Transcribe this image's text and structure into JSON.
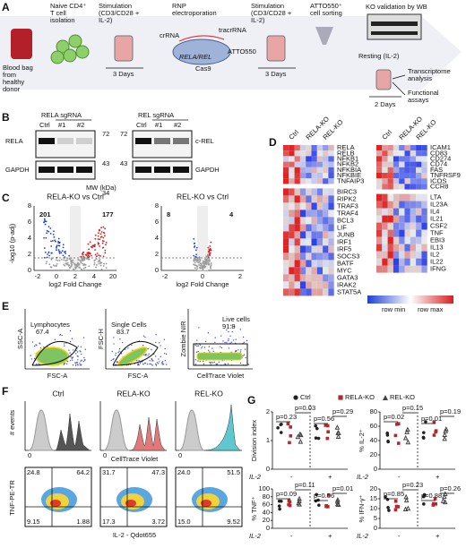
{
  "panel_a": {
    "label": "A",
    "blood_bag": [
      "Blood bag",
      "from",
      "healthy",
      "donor"
    ],
    "naive": [
      "Naive CD4⁺",
      "T cell",
      "isolation"
    ],
    "stim1": [
      "Stimulation",
      "(CD3/CD28 +",
      "IL-2)"
    ],
    "rnp": [
      "RNP",
      "electroporation"
    ],
    "stim2": [
      "Stimulation",
      "(CD3/CD28 +",
      "IL-2)"
    ],
    "sort": [
      "ATTO550⁺",
      "cell sorting"
    ],
    "wb": "KO validation by WB",
    "resting": "Resting (IL-2)",
    "days1": "3 Days",
    "days2": "3 Days",
    "days3": "2 Days",
    "transcriptome": [
      "Transcriptome",
      "analysis"
    ],
    "functional": [
      "Functional",
      "assays"
    ],
    "crrna": "crRNA",
    "tracrrna": "tracrRNA",
    "atto": "ATTO550",
    "target": "RELA/REL",
    "cas9": "Cas9"
  },
  "panel_b": {
    "label": "B",
    "left": {
      "header": "RELA sgRNA",
      "lanes": [
        "Ctrl",
        "#1",
        "#2"
      ],
      "rows": [
        "RELA",
        "GAPDH"
      ],
      "mw": [
        "72",
        "43",
        "34"
      ]
    },
    "right": {
      "header": "REL sgRNA",
      "lanes": [
        "Ctrl",
        "#1",
        "#2"
      ],
      "rows": [
        "c-REL",
        "GAPDH"
      ],
      "mw": [
        "72",
        "43"
      ]
    },
    "mw_label": "MW (kDa)"
  },
  "panel_c": {
    "label": "C",
    "xlabel": "log2 Fold Change",
    "ylabel": "-log10 (p-adj)",
    "plots": [
      {
        "title": "RELA-KO vs Ctrl",
        "down": "201",
        "up": "177",
        "xticks": [
          "-2",
          "0",
          "2",
          "4",
          "20"
        ],
        "yticks": [
          "0",
          "2",
          "4",
          "6",
          "8"
        ]
      },
      {
        "title": "REL-KO vs Ctrl",
        "down": "8",
        "up": "4",
        "xticks": [
          "-2",
          "0",
          "2"
        ],
        "yticks": [
          "0",
          "2",
          "4",
          "6",
          "8"
        ]
      }
    ]
  },
  "panel_d": {
    "label": "D",
    "columns": [
      "Ctrl",
      "RELA-KO",
      "REL-KO"
    ],
    "blocks": [
      [
        "RELA",
        "RELB",
        "NFKB1",
        "NFKB2",
        "NFKBIA",
        "NFKBIE",
        "TNFAIP3"
      ],
      [
        "BIRC3",
        "RIPK2",
        "TRAF3",
        "TRAF4",
        "BCL3",
        "LIF",
        "JUNB",
        "IRF1",
        "IRF5",
        "SOCS3",
        "BATF",
        "MYC",
        "GATA3",
        "IRAK2",
        "STAT5A"
      ],
      [
        "ICAM1",
        "CD83",
        "CD274",
        "CD74",
        "FAS",
        "TNFRSF9",
        "ICOS",
        "CCR8"
      ],
      [
        "LTA",
        "IL23A",
        "IL4",
        "IL21",
        "CSF2",
        "TNF",
        "EBI3",
        "IL13",
        "IL2",
        "IL22",
        "IFNG"
      ]
    ],
    "legend": [
      "row min",
      "row max"
    ]
  },
  "panel_e": {
    "label": "E",
    "plots": [
      {
        "ylabel": "SSC-A",
        "xlabel": "FSC-A",
        "gate": "Lymphocytes",
        "pct": "67.4"
      },
      {
        "ylabel": "FSC-H",
        "xlabel": "FSC-A",
        "gate": "Single Cells",
        "pct": "83.7"
      },
      {
        "ylabel": "Zombie NIR",
        "xlabel": "CellTrace Violet",
        "gate": "Live cells",
        "pct": "91.8"
      }
    ]
  },
  "panel_f": {
    "label": "F",
    "hist_ylabel": "# events",
    "hist_xlabel": "CellTrace Violet",
    "titles": [
      "Ctrl",
      "RELA-KO",
      "REL-KO"
    ],
    "zero": "0",
    "dot_ylabel": "TNF-PE-TR",
    "dot_xlabel": "IL-2 - Qdot655",
    "quadrants": [
      [
        "24.8",
        "64.2",
        "9.15",
        "1.88"
      ],
      [
        "31.7",
        "47.3",
        "17.3",
        "3.72"
      ],
      [
        "24.0",
        "51.5",
        "15.0",
        "9.52"
      ]
    ]
  },
  "panel_g": {
    "label": "G",
    "legend": [
      {
        "name": "Ctrl",
        "color": "#222222"
      },
      {
        "name": "RELA-KO",
        "color": "#b5272d"
      },
      {
        "name": "REL-KO",
        "color": "#444444"
      }
    ],
    "il2": "IL-2",
    "minus": "-",
    "plus": "+",
    "plots": [
      {
        "ylabel": "Division index",
        "yticks": [
          "0",
          "1",
          "2"
        ],
        "p": [
          "p=0.23",
          "p=0.03",
          "p=0.56",
          "p=0.29"
        ]
      },
      {
        "ylabel": "% IL-2⁺",
        "yticks": [
          "0",
          "20",
          "40",
          "60",
          "80"
        ],
        "p": [
          "p=0.02",
          "p=0.15",
          "p=0.01",
          "p=0.19"
        ]
      },
      {
        "ylabel": "% TNF⁺",
        "yticks": [
          "0",
          "20",
          "40",
          "60",
          "80",
          "100"
        ],
        "p": [
          "p=0.09",
          "p=0.11",
          "p=0.06",
          "p=0.01"
        ]
      },
      {
        "ylabel": "% IFN-γ⁺",
        "yticks": [
          "0",
          "5",
          "10",
          "15",
          "20"
        ],
        "p": [
          "p=0.85",
          "p=0.23",
          "p=0.88",
          "p=0.26"
        ]
      }
    ]
  }
}
